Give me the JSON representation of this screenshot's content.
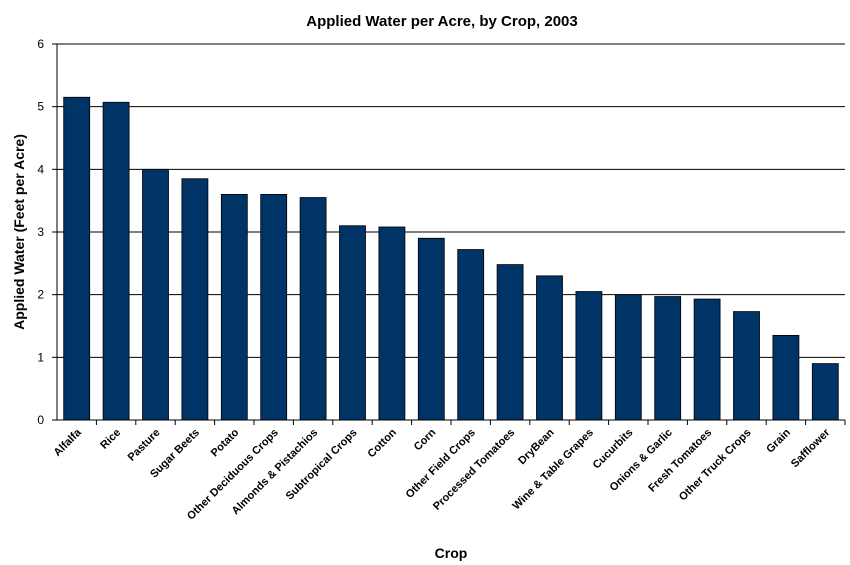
{
  "chart_data": {
    "type": "bar",
    "title": "Applied Water per Acre, by Crop, 2003",
    "xlabel": "Crop",
    "ylabel": "Applied Water (Feet per Acre)",
    "ylim": [
      0,
      6
    ],
    "yticks": [
      "0",
      "1",
      "2",
      "3",
      "4",
      "5",
      "6"
    ],
    "grid": true,
    "legend": "none",
    "bar_color": "#003366",
    "categories": [
      "Alfalfa",
      "Rice",
      "Pasture",
      "Sugar Beets",
      "Potato",
      "Other Deciduous Crops",
      "Almonds & Pistachios",
      "Subtropical Crops",
      "Cotton",
      "Corn",
      "Other Field Crops",
      "Processed Tomatoes",
      "DryBean",
      "Wine & Table Grapes",
      "Cucurbits",
      "Onions & Garlic",
      "Fresh Tomatoes",
      "Other Truck Crops",
      "Grain",
      "Safflower"
    ],
    "values": [
      5.15,
      5.07,
      4.0,
      3.85,
      3.6,
      3.6,
      3.55,
      3.1,
      3.08,
      2.9,
      2.72,
      2.48,
      2.3,
      2.05,
      2.0,
      1.97,
      1.93,
      1.73,
      1.35,
      0.9
    ]
  }
}
